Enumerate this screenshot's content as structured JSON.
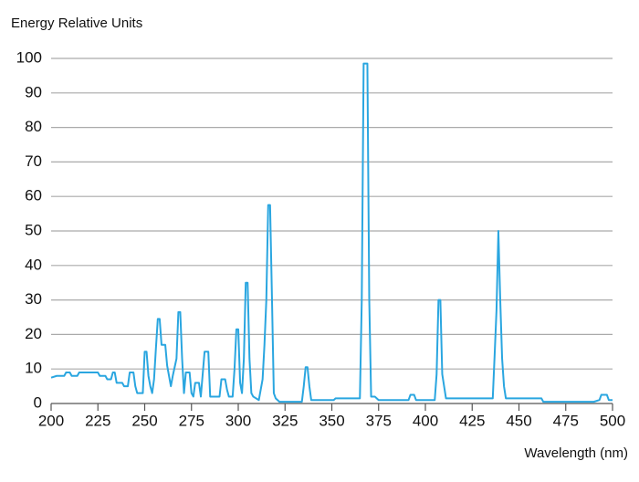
{
  "chart_data": {
    "type": "line",
    "title": "Energy Relative Units",
    "x_label": "Wavelength (nm)",
    "xlim": [
      200,
      500
    ],
    "ylim": [
      0,
      100
    ],
    "xticks": [
      200,
      225,
      250,
      275,
      300,
      325,
      350,
      375,
      400,
      425,
      450,
      475,
      500
    ],
    "yticks": [
      0,
      10,
      20,
      30,
      40,
      50,
      60,
      70,
      80,
      90,
      100
    ],
    "grid": true,
    "color": "#2aa6e0",
    "x": [
      200,
      203,
      207,
      208,
      210,
      211,
      214,
      215,
      225,
      226,
      229,
      230,
      232,
      233,
      234,
      235,
      238,
      239,
      241,
      242,
      244,
      245,
      246,
      249,
      250,
      251,
      252,
      253,
      254,
      255,
      256,
      257,
      258,
      259,
      261,
      262,
      263,
      264,
      265,
      267,
      268,
      269,
      270,
      271,
      272,
      274,
      275,
      276,
      277,
      279,
      280,
      282,
      284,
      285,
      290,
      291,
      293,
      294,
      295,
      297,
      298,
      299,
      300,
      301,
      302,
      303,
      304,
      305,
      306,
      307,
      308,
      311,
      313,
      314,
      315,
      316,
      317,
      318,
      319,
      320,
      322,
      334,
      335,
      336,
      337,
      338,
      339,
      351,
      352,
      365,
      366,
      367,
      369,
      370,
      371,
      373,
      374,
      375,
      391,
      392,
      394,
      395,
      405,
      406,
      407,
      408,
      409,
      410,
      411,
      436,
      437,
      438,
      439,
      440,
      441,
      442,
      443,
      462,
      463,
      490,
      493,
      494,
      497,
      498,
      500
    ],
    "values": [
      7.5,
      8,
      8,
      9,
      9,
      8,
      8,
      9,
      9,
      8,
      8,
      7,
      7,
      9,
      9,
      6,
      6,
      5,
      5,
      9,
      9,
      5,
      3,
      3,
      15,
      15,
      8,
      5,
      3,
      7,
      16,
      24.5,
      24.5,
      17,
      17,
      11,
      8,
      5,
      8,
      13,
      26.5,
      26.5,
      13,
      3,
      9,
      9,
      3,
      2,
      6,
      6,
      2,
      15,
      15,
      2,
      2,
      7,
      7,
      4,
      2,
      2,
      10,
      21.5,
      21.5,
      6,
      3,
      13,
      35,
      35,
      13,
      3,
      2,
      1,
      7,
      17,
      30,
      57.5,
      57.5,
      31,
      3,
      1.5,
      0.5,
      0.5,
      5,
      10.5,
      10.5,
      5,
      1,
      1,
      1.5,
      1.5,
      30,
      98.5,
      98.5,
      30,
      2,
      2,
      1.5,
      1,
      1,
      2.5,
      2.5,
      1,
      1,
      8.5,
      30,
      30,
      8.5,
      5,
      1.5,
      1.5,
      14,
      27,
      50,
      30,
      13,
      5,
      1.5,
      1.5,
      0.5,
      0.5,
      1,
      2.5,
      2.5,
      1,
      1
    ]
  }
}
